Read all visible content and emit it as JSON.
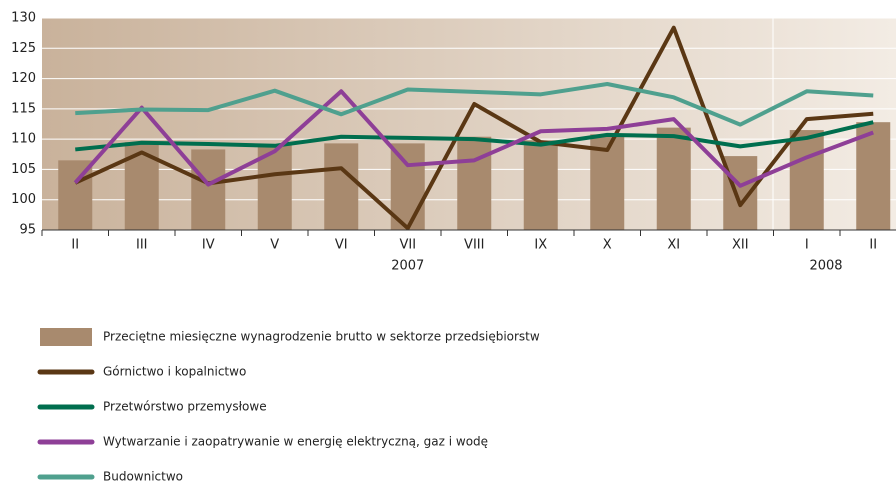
{
  "chart_data": {
    "type": "bar_line",
    "categories": [
      "II",
      "III",
      "IV",
      "V",
      "VI",
      "VII",
      "VIII",
      "IX",
      "X",
      "XI",
      "XII",
      "I",
      "II"
    ],
    "year_labels": [
      "2007",
      "2008"
    ],
    "bars": {
      "name": "Przeciętne miesięczne wynagrodzenie brutto w sektorze przedsiębiorstw",
      "color": "#a88a6e",
      "values": [
        106.5,
        109.5,
        108.3,
        109.0,
        109.3,
        109.3,
        110.4,
        109.8,
        110.8,
        111.9,
        107.2,
        111.5,
        112.8
      ]
    },
    "series": [
      {
        "name": "Górnictwo i kopalnictwo",
        "color": "#5a3714",
        "values": [
          102.8,
          107.8,
          102.7,
          104.2,
          105.2,
          95.3,
          115.8,
          109.5,
          108.2,
          128.4,
          99.1,
          113.3,
          114.2
        ]
      },
      {
        "name": "Przetwórstwo przemysłowe",
        "color": "#006e4e",
        "values": [
          108.3,
          109.4,
          109.2,
          108.9,
          110.4,
          110.2,
          110.0,
          109.1,
          110.7,
          110.5,
          108.8,
          110.2,
          112.8
        ]
      },
      {
        "name": "Wytwarzanie i zaopatrywanie w energię elektryczną, gaz i wodę",
        "color": "#8e3f97",
        "values": [
          102.8,
          115.2,
          102.5,
          108.0,
          117.9,
          105.7,
          106.5,
          111.3,
          111.7,
          113.3,
          102.3,
          107.0,
          111.1
        ]
      },
      {
        "name": "Budownictwo",
        "color": "#4fa08e",
        "values": [
          114.3,
          114.9,
          114.8,
          118.0,
          114.1,
          118.2,
          117.8,
          117.4,
          119.1,
          116.9,
          112.4,
          117.9,
          117.2
        ]
      }
    ],
    "ylim": [
      95,
      130
    ],
    "yticks": [
      95,
      100,
      105,
      110,
      115,
      120,
      125,
      130
    ],
    "grid": true
  }
}
